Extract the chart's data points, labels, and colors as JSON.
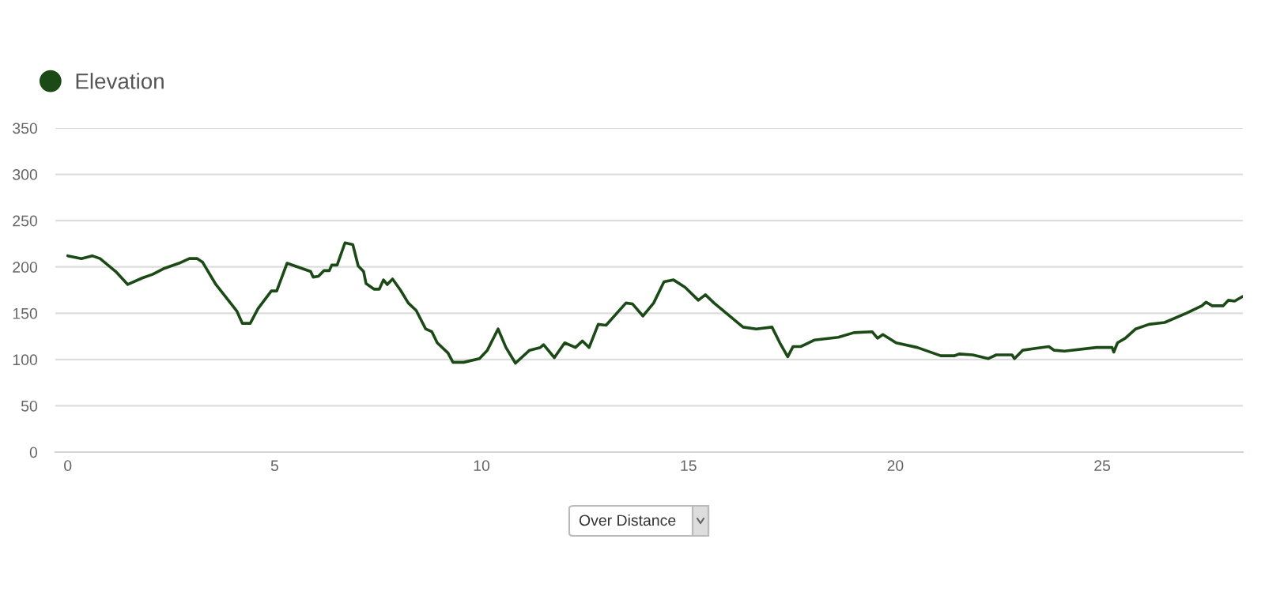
{
  "chart_data": {
    "type": "line",
    "x": [
      0.0,
      0.33,
      0.59,
      0.78,
      1.16,
      1.45,
      1.8,
      2.05,
      2.31,
      2.69,
      2.94,
      3.13,
      3.26,
      3.58,
      4.09,
      4.22,
      4.41,
      4.6,
      4.92,
      5.05,
      5.3,
      5.49,
      5.87,
      5.93,
      6.06,
      6.19,
      6.32,
      6.38,
      6.51,
      6.7,
      6.89,
      7.02,
      7.15,
      7.21,
      7.4,
      7.53,
      7.63,
      7.72,
      7.85,
      8.04,
      8.23,
      8.42,
      8.65,
      8.8,
      8.93,
      9.19,
      9.31,
      9.57,
      9.95,
      10.14,
      10.4,
      10.59,
      10.82,
      11.16,
      11.42,
      11.5,
      11.76,
      12.01,
      12.27,
      12.44,
      12.6,
      12.82,
      13.01,
      13.49,
      13.65,
      13.9,
      14.16,
      14.41,
      14.64,
      14.92,
      15.24,
      15.41,
      15.62,
      16.32,
      16.64,
      17.02,
      17.21,
      17.4,
      17.53,
      17.72,
      18.04,
      18.62,
      19.0,
      19.44,
      19.57,
      19.7,
      20.02,
      20.53,
      21.1,
      21.42,
      21.55,
      21.87,
      22.25,
      22.44,
      22.82,
      22.88,
      23.08,
      23.39,
      23.71,
      23.84,
      24.09,
      24.86,
      25.24,
      25.28,
      25.37,
      25.56,
      25.81,
      26.13,
      26.51,
      27.03,
      27.41,
      27.51,
      27.66,
      27.92,
      28.05,
      28.2,
      28.39
    ],
    "series": [
      {
        "name": "Elevation",
        "color": "#1b4a16",
        "values": [
          212,
          209,
          212,
          209,
          195,
          181,
          188,
          192,
          198,
          204,
          209,
          209,
          205,
          181,
          152,
          139,
          139,
          155,
          174,
          174,
          204,
          201,
          195,
          189,
          190,
          196,
          196,
          202,
          202,
          226,
          224,
          201,
          195,
          182,
          176,
          176,
          186,
          181,
          187,
          175,
          161,
          153,
          133,
          130,
          118,
          107,
          97,
          97,
          101,
          110,
          133,
          113,
          96,
          110,
          113,
          116,
          102,
          118,
          113,
          120,
          113,
          138,
          137,
          161,
          160,
          147,
          161,
          184,
          186,
          178,
          164,
          170,
          161,
          135,
          133,
          135,
          118,
          103,
          114,
          114,
          121,
          124,
          129,
          130,
          123,
          127,
          118,
          113,
          104,
          104,
          106,
          105,
          101,
          105,
          105,
          101,
          110,
          112,
          114,
          110,
          109,
          113,
          113,
          108,
          118,
          123,
          133,
          138,
          140,
          150,
          158,
          162,
          158,
          158,
          164,
          163,
          168
        ]
      }
    ],
    "xlim": [
      -0.3,
      28.4
    ],
    "xticks": [
      0,
      5,
      10,
      15,
      20,
      25
    ],
    "ylim": [
      0,
      350
    ],
    "yticks": [
      0,
      50,
      100,
      150,
      200,
      250,
      300,
      350
    ],
    "grid": "y",
    "legend": "top left",
    "marker": "none",
    "line_style": "solid",
    "annotations": [
      "Over Distance"
    ]
  }
}
